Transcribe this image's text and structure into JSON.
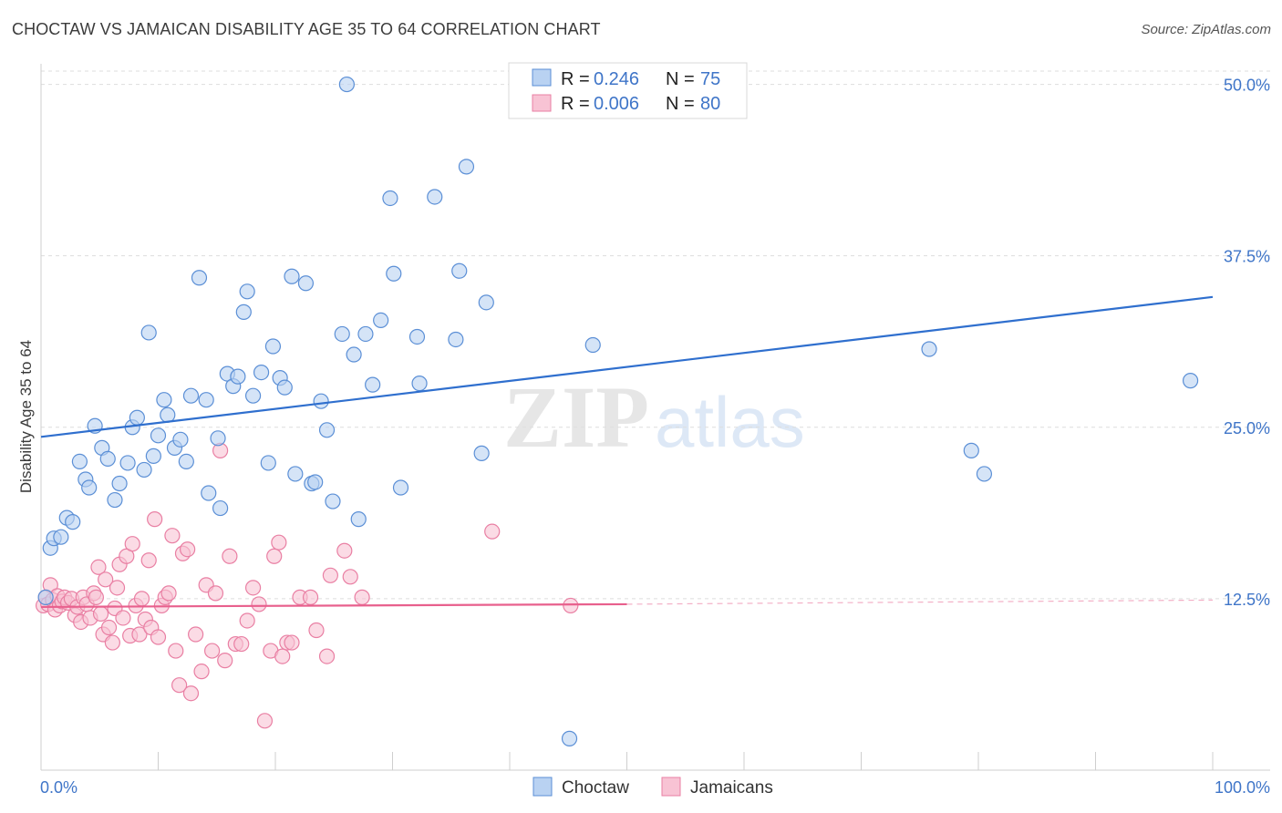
{
  "title": "CHOCTAW VS JAMAICAN DISABILITY AGE 35 TO 64 CORRELATION CHART",
  "source": "Source: ZipAtlas.com",
  "watermark": {
    "zip": "ZIP",
    "atlas": "atlas"
  },
  "colors": {
    "choctaw_fill": "#b9d2f2",
    "choctaw_stroke": "#5b8fd6",
    "choctaw_line": "#2f6fce",
    "jamaican_fill": "#f8c3d4",
    "jamaican_stroke": "#e97fa3",
    "jamaican_line": "#e8608d",
    "tick_label": "#3f75c8",
    "grid": "#dddddd"
  },
  "legend": {
    "rows": [
      {
        "r_label": "R =",
        "r_value": "0.246",
        "n_label": "N =",
        "n_value": "75"
      },
      {
        "r_label": "R =",
        "r_value": "0.006",
        "n_label": "N =",
        "n_value": "80"
      }
    ]
  },
  "chart_data": {
    "type": "scatter",
    "title": "CHOCTAW VS JAMAICAN DISABILITY AGE 35 TO 64 CORRELATION CHART",
    "xlabel": "",
    "ylabel": "Disability Age 35 to 64",
    "xlim": [
      0,
      100
    ],
    "ylim": [
      0,
      51.5
    ],
    "x_tick_labels": [
      "0.0%",
      "100.0%"
    ],
    "y_ticks": [
      12.5,
      25.0,
      37.5,
      50.0
    ],
    "y_tick_labels": [
      "12.5%",
      "25.0%",
      "37.5%",
      "50.0%"
    ],
    "grid": true,
    "legend_position": "top-center",
    "series": [
      {
        "name": "Choctaw",
        "trend": {
          "x": [
            0,
            100
          ],
          "y": [
            24.3,
            34.5
          ]
        },
        "points": [
          [
            0.4,
            12.6
          ],
          [
            0.8,
            16.2
          ],
          [
            1.1,
            16.9
          ],
          [
            1.7,
            17.0
          ],
          [
            2.2,
            18.4
          ],
          [
            2.7,
            18.1
          ],
          [
            3.3,
            22.5
          ],
          [
            3.8,
            21.2
          ],
          [
            4.1,
            20.6
          ],
          [
            4.6,
            25.1
          ],
          [
            5.2,
            23.5
          ],
          [
            5.7,
            22.7
          ],
          [
            6.3,
            19.7
          ],
          [
            6.7,
            20.9
          ],
          [
            7.4,
            22.4
          ],
          [
            7.8,
            25.0
          ],
          [
            8.2,
            25.7
          ],
          [
            8.8,
            21.9
          ],
          [
            9.2,
            31.9
          ],
          [
            9.6,
            22.9
          ],
          [
            10.0,
            24.4
          ],
          [
            10.5,
            27.0
          ],
          [
            10.8,
            25.9
          ],
          [
            11.4,
            23.5
          ],
          [
            11.9,
            24.1
          ],
          [
            12.4,
            22.5
          ],
          [
            12.8,
            27.3
          ],
          [
            13.5,
            35.9
          ],
          [
            14.1,
            27.0
          ],
          [
            14.3,
            20.2
          ],
          [
            15.1,
            24.2
          ],
          [
            15.3,
            19.1
          ],
          [
            15.9,
            28.9
          ],
          [
            16.4,
            28.0
          ],
          [
            16.8,
            28.7
          ],
          [
            17.3,
            33.4
          ],
          [
            17.6,
            34.9
          ],
          [
            18.1,
            27.3
          ],
          [
            18.8,
            29.0
          ],
          [
            19.4,
            22.4
          ],
          [
            19.8,
            30.9
          ],
          [
            20.4,
            28.6
          ],
          [
            20.8,
            27.9
          ],
          [
            21.4,
            36.0
          ],
          [
            21.7,
            21.6
          ],
          [
            22.6,
            35.5
          ],
          [
            23.1,
            20.9
          ],
          [
            23.4,
            21.0
          ],
          [
            23.9,
            26.9
          ],
          [
            24.4,
            24.8
          ],
          [
            24.9,
            19.6
          ],
          [
            25.7,
            31.8
          ],
          [
            26.1,
            50.0
          ],
          [
            26.7,
            30.3
          ],
          [
            27.1,
            18.3
          ],
          [
            27.7,
            31.8
          ],
          [
            28.3,
            28.1
          ],
          [
            29.0,
            32.8
          ],
          [
            29.8,
            41.7
          ],
          [
            30.1,
            36.2
          ],
          [
            30.7,
            20.6
          ],
          [
            32.1,
            31.6
          ],
          [
            32.3,
            28.2
          ],
          [
            33.6,
            41.8
          ],
          [
            35.4,
            31.4
          ],
          [
            35.7,
            36.4
          ],
          [
            36.3,
            44.0
          ],
          [
            37.6,
            23.1
          ],
          [
            38.0,
            34.1
          ],
          [
            45.1,
            2.3
          ],
          [
            47.1,
            31.0
          ],
          [
            75.8,
            30.7
          ],
          [
            79.4,
            23.3
          ],
          [
            80.5,
            21.6
          ],
          [
            98.1,
            28.4
          ]
        ]
      },
      {
        "name": "Jamaicans",
        "trend": {
          "x": [
            0,
            50
          ],
          "y": [
            11.9,
            12.1
          ]
        },
        "trend_dash": {
          "x": [
            50,
            100
          ],
          "y": [
            12.1,
            12.4
          ]
        },
        "points": [
          [
            0.2,
            12.0
          ],
          [
            0.4,
            12.6
          ],
          [
            0.6,
            12.1
          ],
          [
            0.8,
            13.5
          ],
          [
            1.0,
            12.4
          ],
          [
            1.2,
            11.7
          ],
          [
            1.4,
            12.7
          ],
          [
            1.6,
            12.0
          ],
          [
            1.8,
            12.3
          ],
          [
            2.0,
            12.6
          ],
          [
            2.3,
            12.2
          ],
          [
            2.6,
            12.5
          ],
          [
            2.9,
            11.3
          ],
          [
            3.1,
            11.9
          ],
          [
            3.4,
            10.8
          ],
          [
            3.6,
            12.6
          ],
          [
            3.9,
            12.1
          ],
          [
            4.2,
            11.1
          ],
          [
            4.5,
            12.9
          ],
          [
            4.7,
            12.6
          ],
          [
            4.9,
            14.8
          ],
          [
            5.1,
            11.4
          ],
          [
            5.3,
            9.9
          ],
          [
            5.5,
            13.9
          ],
          [
            5.8,
            10.4
          ],
          [
            6.1,
            9.3
          ],
          [
            6.3,
            11.8
          ],
          [
            6.5,
            13.3
          ],
          [
            6.7,
            15.0
          ],
          [
            7.0,
            11.1
          ],
          [
            7.3,
            15.6
          ],
          [
            7.6,
            9.8
          ],
          [
            7.8,
            16.5
          ],
          [
            8.1,
            12.0
          ],
          [
            8.4,
            9.9
          ],
          [
            8.6,
            12.5
          ],
          [
            8.9,
            11.0
          ],
          [
            9.2,
            15.3
          ],
          [
            9.4,
            10.4
          ],
          [
            9.7,
            18.3
          ],
          [
            10.0,
            9.7
          ],
          [
            10.3,
            12.0
          ],
          [
            10.6,
            12.6
          ],
          [
            10.9,
            12.9
          ],
          [
            11.2,
            17.1
          ],
          [
            11.5,
            8.7
          ],
          [
            11.8,
            6.2
          ],
          [
            12.1,
            15.8
          ],
          [
            12.5,
            16.1
          ],
          [
            12.8,
            5.6
          ],
          [
            13.2,
            9.9
          ],
          [
            13.7,
            7.2
          ],
          [
            14.1,
            13.5
          ],
          [
            14.6,
            8.7
          ],
          [
            14.9,
            12.9
          ],
          [
            15.3,
            23.3
          ],
          [
            15.7,
            8.0
          ],
          [
            16.1,
            15.6
          ],
          [
            16.6,
            9.2
          ],
          [
            17.1,
            9.2
          ],
          [
            17.6,
            10.9
          ],
          [
            18.1,
            13.3
          ],
          [
            18.6,
            12.1
          ],
          [
            19.1,
            3.6
          ],
          [
            19.6,
            8.7
          ],
          [
            19.9,
            15.6
          ],
          [
            20.3,
            16.6
          ],
          [
            20.6,
            8.3
          ],
          [
            21.0,
            9.3
          ],
          [
            21.4,
            9.3
          ],
          [
            22.1,
            12.6
          ],
          [
            23.0,
            12.6
          ],
          [
            23.5,
            10.2
          ],
          [
            24.4,
            8.3
          ],
          [
            24.7,
            14.2
          ],
          [
            25.9,
            16.0
          ],
          [
            26.4,
            14.1
          ],
          [
            27.4,
            12.6
          ],
          [
            38.5,
            17.4
          ],
          [
            45.2,
            12.0
          ]
        ]
      }
    ]
  },
  "bottom_legend": {
    "items": [
      "Choctaw",
      "Jamaicans"
    ]
  }
}
